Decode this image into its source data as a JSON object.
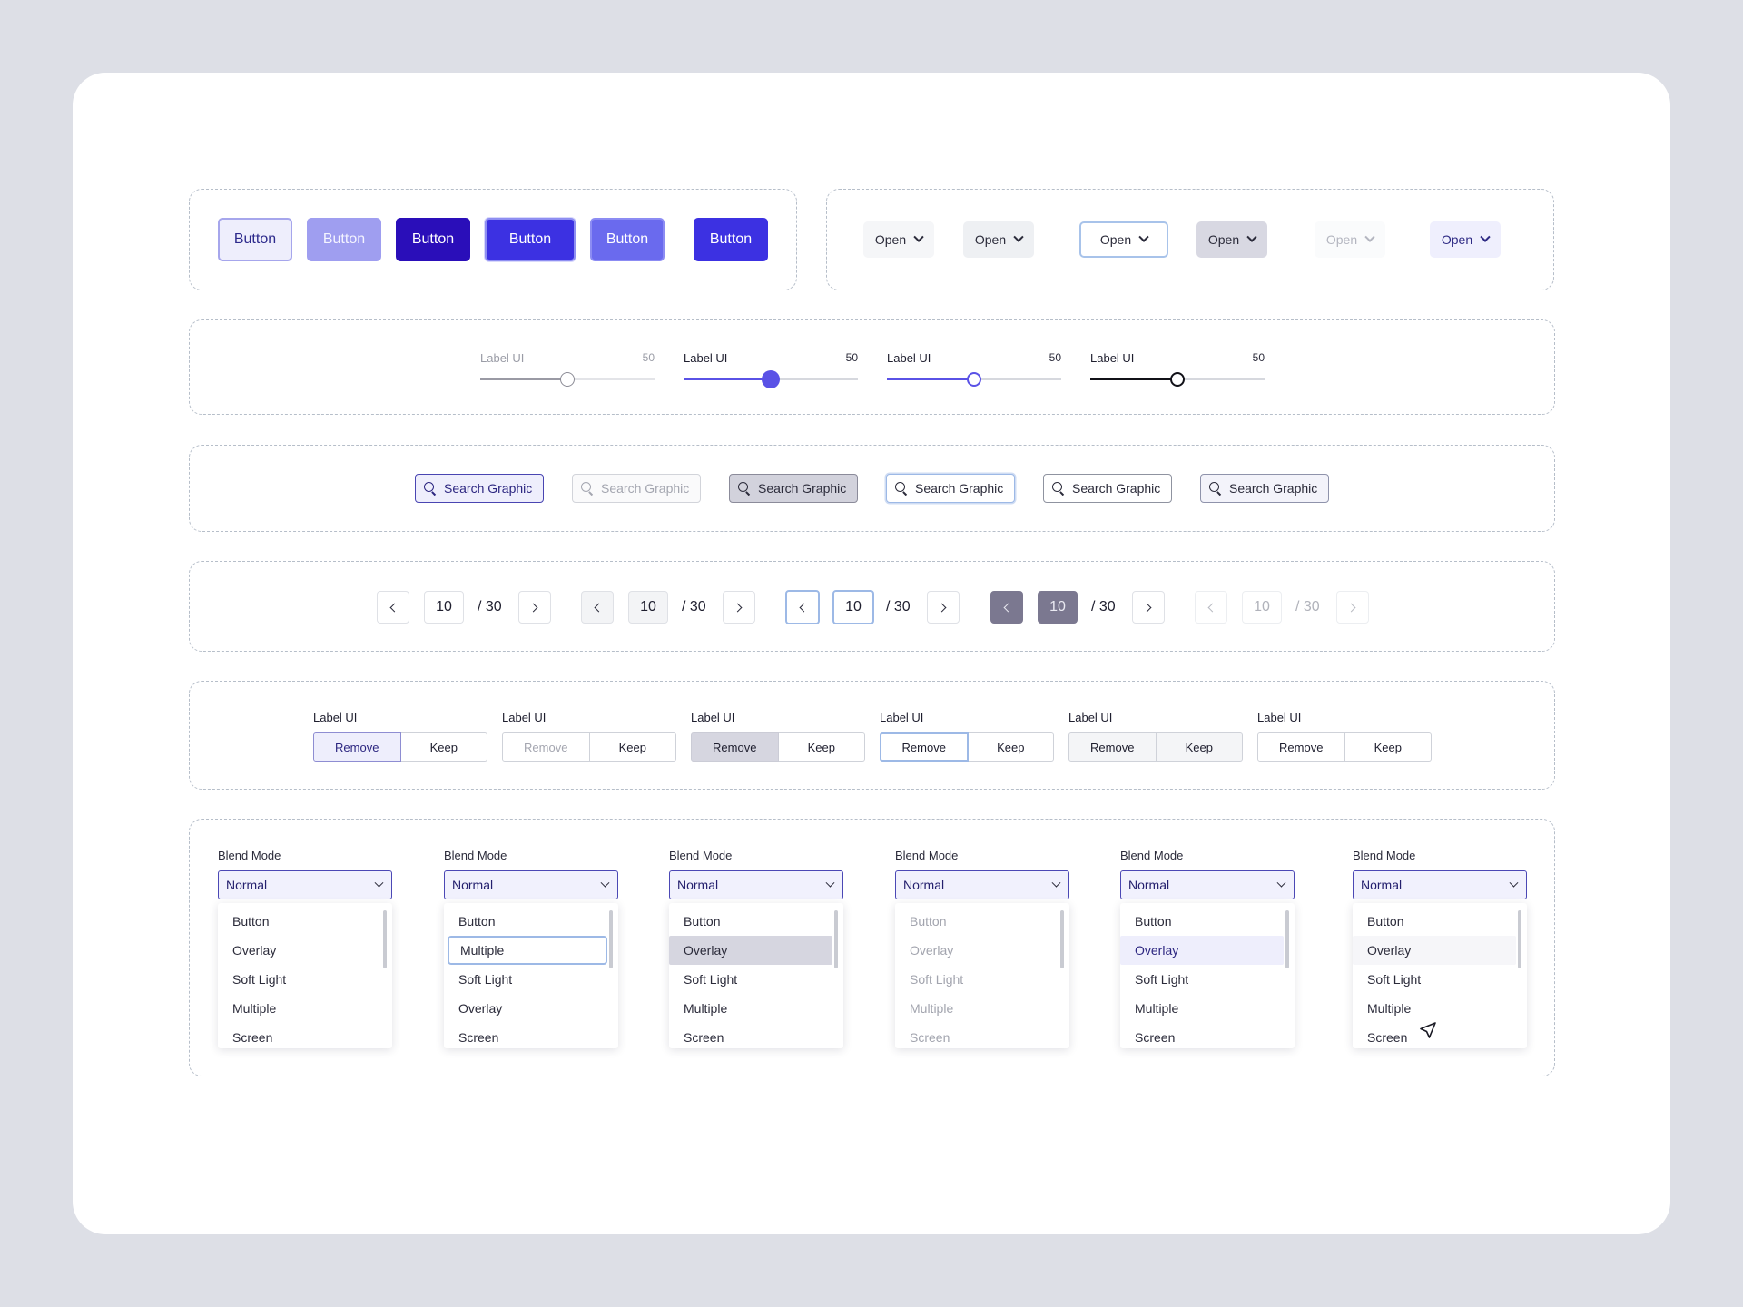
{
  "buttons_row": {
    "buttons": [
      "Button",
      "Button",
      "Button",
      "Button",
      "Button",
      "Button"
    ],
    "dropdowns": [
      "Open",
      "Open",
      "Open",
      "Open",
      "Open",
      "Open"
    ]
  },
  "sliders": [
    {
      "label": "Label UI",
      "value": "50",
      "level": 0.5
    },
    {
      "label": "Label UI",
      "value": "50",
      "level": 0.5
    },
    {
      "label": "Label UI",
      "value": "50",
      "level": 0.5
    },
    {
      "label": "Label UI",
      "value": "50",
      "level": 0.5
    }
  ],
  "searches": [
    {
      "text": "Search Graphic"
    },
    {
      "text": "Search Graphic"
    },
    {
      "text": "Search Graphic"
    },
    {
      "text": "Search Graphic"
    },
    {
      "text": "Search Graphic"
    },
    {
      "text": "Search Graphic"
    }
  ],
  "pagination": [
    {
      "page": "10",
      "total": "/ 30"
    },
    {
      "page": "10",
      "total": "/ 30"
    },
    {
      "page": "10",
      "total": "/ 30"
    },
    {
      "page": "10",
      "total": "/ 30"
    },
    {
      "page": "10",
      "total": "/ 30"
    }
  ],
  "segments": [
    {
      "label": "Label UI",
      "left": "Remove",
      "right": "Keep"
    },
    {
      "label": "Label UI",
      "left": "Remove",
      "right": "Keep"
    },
    {
      "label": "Label UI",
      "left": "Remove",
      "right": "Keep"
    },
    {
      "label": "Label UI",
      "left": "Remove",
      "right": "Keep"
    },
    {
      "label": "Label UI",
      "left": "Remove",
      "right": "Keep"
    },
    {
      "label": "Label UI",
      "left": "Remove",
      "right": "Keep"
    }
  ],
  "blends": [
    {
      "label": "Blend Mode",
      "value": "Normal",
      "options": [
        "Button",
        "Overlay",
        "Soft Light",
        "Multiple",
        "Screen"
      ]
    },
    {
      "label": "Blend Mode",
      "value": "Normal",
      "options": [
        "Button",
        "Multiple",
        "Soft Light",
        "Overlay",
        "Screen"
      ]
    },
    {
      "label": "Blend Mode",
      "value": "Normal",
      "options": [
        "Button",
        "Overlay",
        "Soft Light",
        "Multiple",
        "Screen"
      ]
    },
    {
      "label": "Blend Mode",
      "value": "Normal",
      "options": [
        "Button",
        "Overlay",
        "Soft Light",
        "Multiple",
        "Screen"
      ]
    },
    {
      "label": "Blend Mode",
      "value": "Normal",
      "options": [
        "Button",
        "Overlay",
        "Soft Light",
        "Multiple",
        "Screen"
      ]
    },
    {
      "label": "Blend Mode",
      "value": "Normal",
      "options": [
        "Button",
        "Overlay",
        "Soft Light",
        "Multiple",
        "Screen"
      ]
    }
  ],
  "colors": {
    "page_bg": "#dddfe6",
    "card_bg": "#ffffff",
    "primary": "#3c31e2",
    "primary_dark": "#2a0eb9",
    "accent_soft": "#eeeefc",
    "dashed_border": "#b6bec9"
  },
  "icons": [
    "search-icon",
    "chevron-down-icon",
    "chevron-left-icon",
    "chevron-right-icon",
    "pointer-cursor-icon"
  ]
}
